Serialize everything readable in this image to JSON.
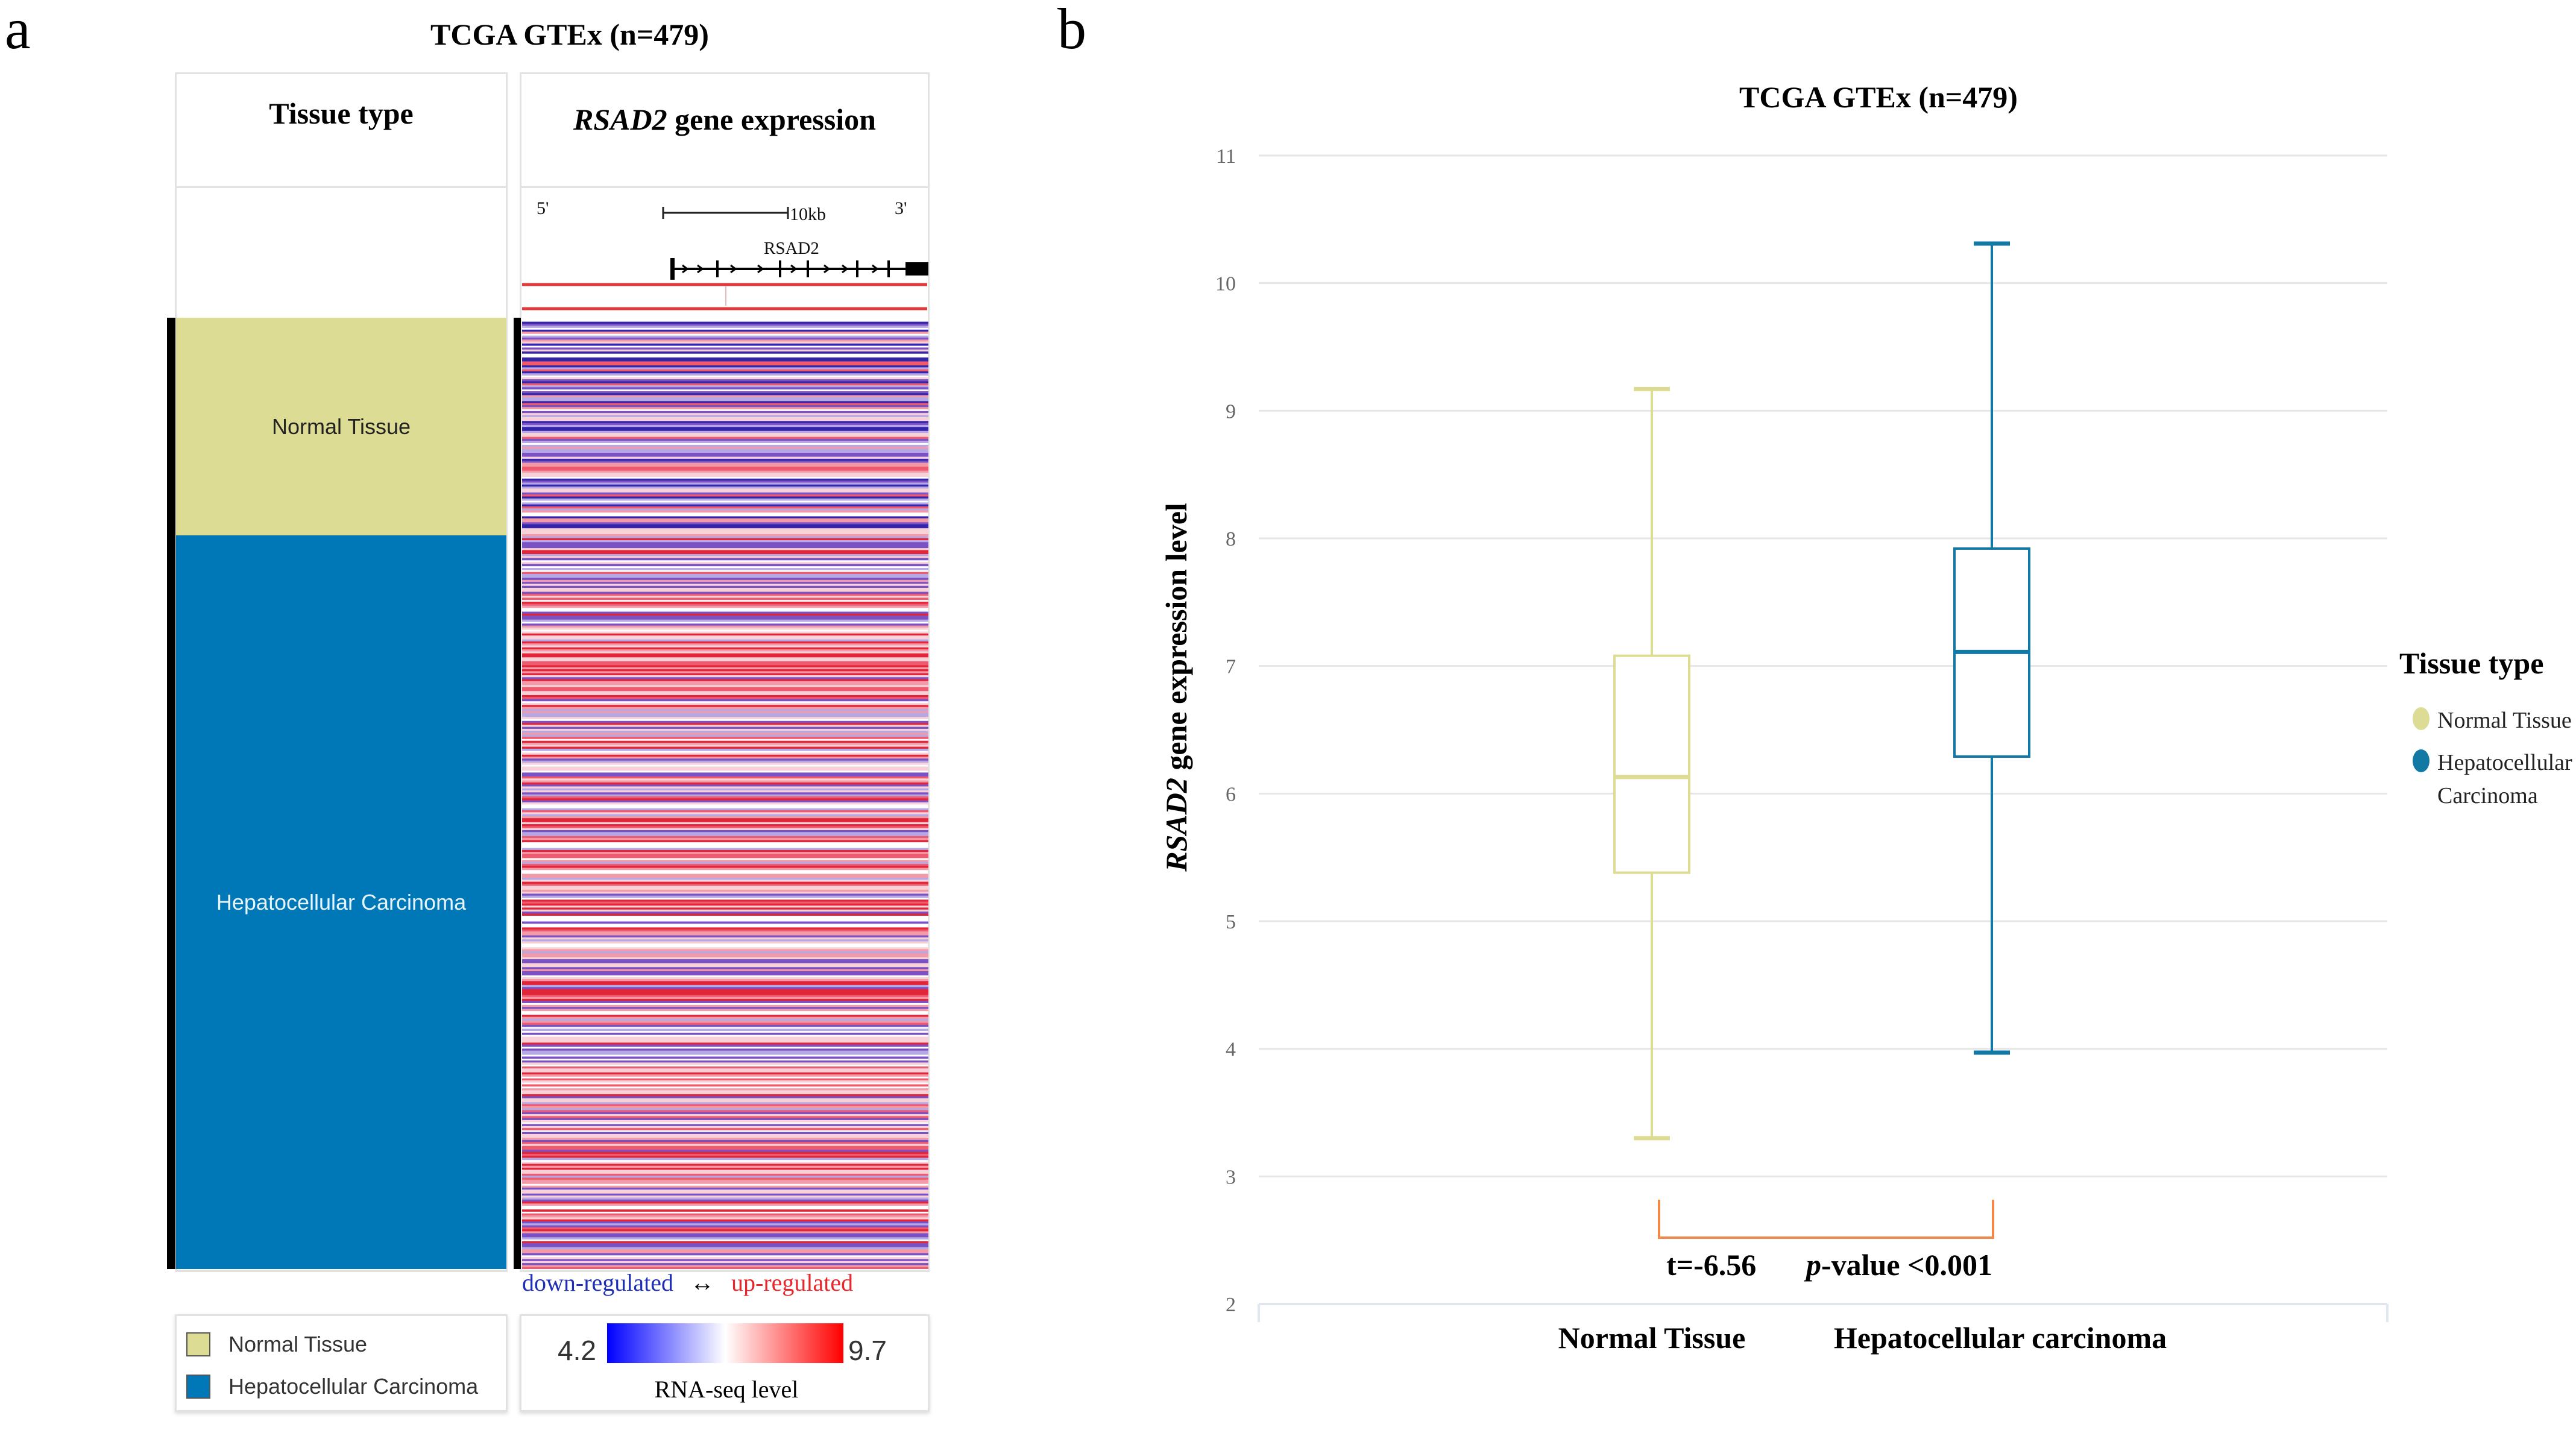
{
  "panel_a": {
    "letter": "a",
    "title": "TCGA GTEx (n=479)",
    "col1_header": "Tissue type",
    "col2_header_gene": "RSAD2",
    "col2_header_rest": " gene expression",
    "gene_track": {
      "five_prime": "5'",
      "three_prime": "3'",
      "scale": "10kb",
      "gene": "RSAD2"
    },
    "segments": [
      {
        "label": "Normal Tissue",
        "color": "#dcdc95",
        "count": 110
      },
      {
        "label": "Hepatocellular Carcinoma",
        "color": "#0077b6",
        "count": 369
      }
    ],
    "regulation": {
      "down": "down-regulated",
      "arrow": "↔",
      "up": "up-regulated",
      "down_color": "#1f2fb5",
      "up_color": "#e8262b"
    },
    "legend": [
      {
        "label": "Normal Tissue",
        "color": "#dcdc95"
      },
      {
        "label": "Hepatocellular Carcinoma",
        "color": "#0077b6"
      }
    ],
    "color_scale": {
      "min": "4.2",
      "max": "9.7",
      "label": "RNA-seq level"
    }
  },
  "panel_b": {
    "letter": "b",
    "legend_title": "Tissue type",
    "legend_items": [
      {
        "label": "Normal Tissue",
        "color": "#dcdc95"
      },
      {
        "label": "Hepatocellular",
        "label2": "Carcinoma",
        "color": "#1279a5"
      }
    ],
    "stat_t": "t=-6.56",
    "stat_p_italic": "p",
    "stat_p_rest": "-value <0.001"
  },
  "chart_data": {
    "type": "boxplot",
    "title": "TCGA GTEx (n=479)",
    "ylabel_gene": "RSAD2",
    "ylabel_rest": " gene expression level",
    "ylim": [
      2,
      11
    ],
    "yticks": [
      2,
      3,
      4,
      5,
      6,
      7,
      8,
      9,
      10,
      11
    ],
    "grid": true,
    "legend_position": "right",
    "categories": [
      "Normal Tissue",
      "Hepatocellular carcinoma"
    ],
    "series": [
      {
        "name": "Normal Tissue",
        "color": "#dcdc95",
        "min": 3.3,
        "q1": 5.38,
        "median": 6.13,
        "q3": 7.08,
        "max": 9.17
      },
      {
        "name": "Hepatocellular Carcinoma",
        "color": "#1279a5",
        "min": 3.97,
        "q1": 6.29,
        "median": 7.11,
        "q3": 7.92,
        "max": 10.31
      }
    ]
  }
}
